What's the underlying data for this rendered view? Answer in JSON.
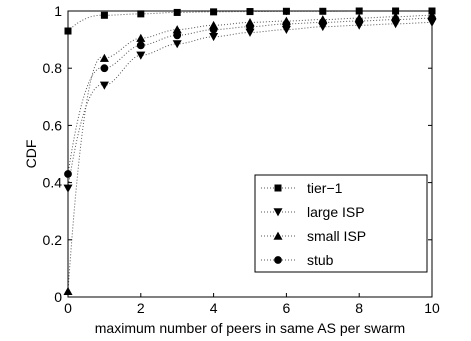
{
  "chart_data": {
    "type": "line",
    "title": "",
    "xlabel": "maximum number of peers in same AS per swarm",
    "ylabel": "CDF",
    "xlim": [
      0,
      10
    ],
    "ylim": [
      0,
      1
    ],
    "xticks": [
      "0",
      "2",
      "4",
      "6",
      "8",
      "10"
    ],
    "yticks": [
      "0",
      "0.2",
      "0.4",
      "0.6",
      "0.8",
      "1"
    ],
    "grid": false,
    "legend_position": "bottom-right",
    "line_style": "dotted",
    "x": [
      0,
      1,
      2,
      3,
      4,
      5,
      6,
      7,
      8,
      9,
      10
    ],
    "series": [
      {
        "name": "tier−1",
        "marker": "square",
        "values": [
          0.93,
          0.985,
          0.99,
          0.995,
          0.997,
          0.998,
          0.999,
          0.999,
          1.0,
          1.0,
          1.0
        ]
      },
      {
        "name": "large ISP",
        "marker": "triangle-down",
        "values": [
          0.38,
          0.74,
          0.845,
          0.885,
          0.91,
          0.925,
          0.935,
          0.945,
          0.95,
          0.955,
          0.96
        ]
      },
      {
        "name": "small ISP",
        "marker": "triangle-up",
        "values": [
          0.02,
          0.835,
          0.905,
          0.935,
          0.95,
          0.96,
          0.965,
          0.97,
          0.975,
          0.98,
          0.985
        ]
      },
      {
        "name": "stub",
        "marker": "circle",
        "values": [
          0.43,
          0.8,
          0.88,
          0.915,
          0.935,
          0.945,
          0.955,
          0.96,
          0.965,
          0.97,
          0.975
        ]
      }
    ]
  }
}
